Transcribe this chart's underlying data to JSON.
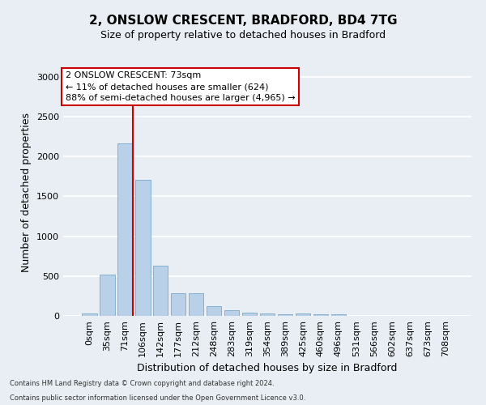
{
  "title1": "2, ONSLOW CRESCENT, BRADFORD, BD4 7TG",
  "title2": "Size of property relative to detached houses in Bradford",
  "xlabel": "Distribution of detached houses by size in Bradford",
  "ylabel": "Number of detached properties",
  "bar_labels": [
    "0sqm",
    "35sqm",
    "71sqm",
    "106sqm",
    "142sqm",
    "177sqm",
    "212sqm",
    "248sqm",
    "283sqm",
    "319sqm",
    "354sqm",
    "389sqm",
    "425sqm",
    "460sqm",
    "496sqm",
    "531sqm",
    "566sqm",
    "602sqm",
    "637sqm",
    "673sqm",
    "708sqm"
  ],
  "bar_values": [
    30,
    520,
    2170,
    1710,
    635,
    280,
    280,
    125,
    75,
    45,
    30,
    25,
    30,
    20,
    25,
    0,
    0,
    0,
    0,
    0,
    0
  ],
  "bar_color": "#b8d0e8",
  "bar_edge_color": "#7aaac8",
  "vline_color": "#cc0000",
  "ylim": [
    0,
    3100
  ],
  "yticks": [
    0,
    500,
    1000,
    1500,
    2000,
    2500,
    3000
  ],
  "annotation_text": "2 ONSLOW CRESCENT: 73sqm\n← 11% of detached houses are smaller (624)\n88% of semi-detached houses are larger (4,965) →",
  "annotation_box_color": "#ffffff",
  "annotation_box_edge": "#cc0000",
  "footer1": "Contains HM Land Registry data © Crown copyright and database right 2024.",
  "footer2": "Contains public sector information licensed under the Open Government Licence v3.0.",
  "background_color": "#e8eef4",
  "grid_color": "#ffffff",
  "title1_fontsize": 11,
  "title2_fontsize": 9,
  "ylabel_fontsize": 9,
  "xlabel_fontsize": 9,
  "tick_fontsize": 8,
  "annot_fontsize": 8,
  "footer_fontsize": 6
}
